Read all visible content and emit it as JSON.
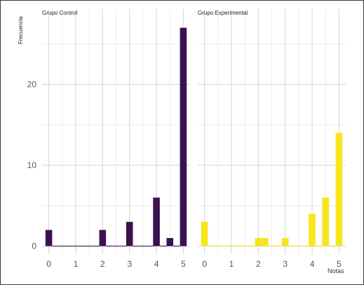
{
  "chart_data": {
    "type": "bar",
    "ylabel": "Frecuencia",
    "xlabel": "Notas",
    "ylim": [
      0,
      28.5
    ],
    "yticks": [
      0,
      10,
      20
    ],
    "xticks": [
      0,
      1,
      2,
      3,
      4,
      5
    ],
    "xlim": [
      -0.25,
      5.25
    ],
    "bar_width": 0.25,
    "panels": [
      {
        "title": "Grupo Control",
        "color": "#3b1250",
        "x": [
          0,
          0.25,
          0.5,
          0.75,
          1,
          1.25,
          1.5,
          1.75,
          2,
          2.25,
          2.5,
          2.75,
          3,
          3.25,
          3.5,
          3.75,
          4,
          4.25,
          4.5,
          4.75,
          5
        ],
        "values": [
          2,
          0,
          0,
          0,
          0,
          0,
          0,
          0,
          2,
          0,
          0,
          0,
          3,
          0,
          0,
          0,
          6,
          0,
          1,
          0,
          27
        ]
      },
      {
        "title": "Grupo Experimental",
        "color": "#f5e61e",
        "x": [
          0,
          0.25,
          0.5,
          0.75,
          1,
          1.25,
          1.5,
          1.75,
          2,
          2.25,
          2.5,
          2.75,
          3,
          3.25,
          3.5,
          3.75,
          4,
          4.25,
          4.5,
          4.75,
          5
        ],
        "values": [
          3,
          0,
          0,
          0,
          0,
          0,
          0,
          0,
          1,
          1,
          0,
          0,
          1,
          0,
          0,
          0,
          4,
          0,
          6,
          0,
          14
        ]
      }
    ]
  }
}
